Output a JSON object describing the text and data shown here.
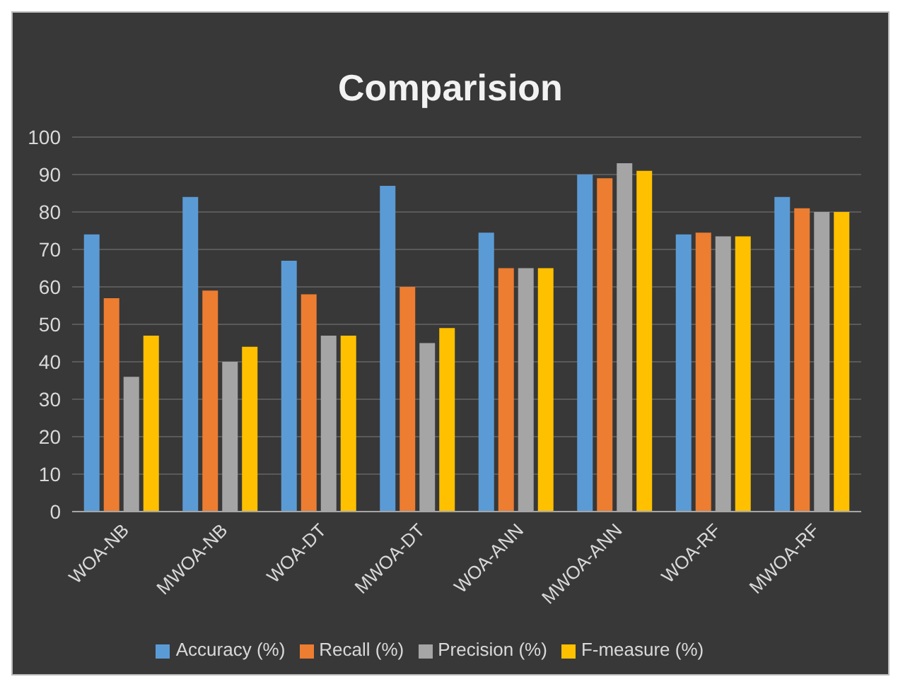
{
  "chart_data": {
    "type": "bar",
    "title": "Comparision",
    "categories": [
      "WOA-NB",
      "MWOA-NB",
      "WOA-DT",
      "MWOA-DT",
      "WOA-ANN",
      "MWOA-ANN",
      "WOA-RF",
      "MWOA-RF"
    ],
    "series": [
      {
        "name": "Accuracy (%)",
        "color": "#5b9bd5",
        "values": [
          74,
          84,
          67,
          87,
          74.5,
          90,
          74,
          84
        ]
      },
      {
        "name": "Recall (%)",
        "color": "#ed7d31",
        "values": [
          57,
          59,
          58,
          60,
          65,
          89,
          74.5,
          81
        ]
      },
      {
        "name": "Precision (%)",
        "color": "#a5a5a5",
        "values": [
          36,
          40,
          47,
          45,
          65,
          93,
          73.5,
          80
        ]
      },
      {
        "name": "F-measure (%)",
        "color": "#ffc000",
        "values": [
          47,
          44,
          47,
          49,
          65,
          91,
          73.5,
          80
        ]
      }
    ],
    "ylim": [
      0,
      100
    ],
    "yticks": [
      0,
      10,
      20,
      30,
      40,
      50,
      60,
      70,
      80,
      90,
      100
    ],
    "grid": "y",
    "legend": "bottom"
  }
}
